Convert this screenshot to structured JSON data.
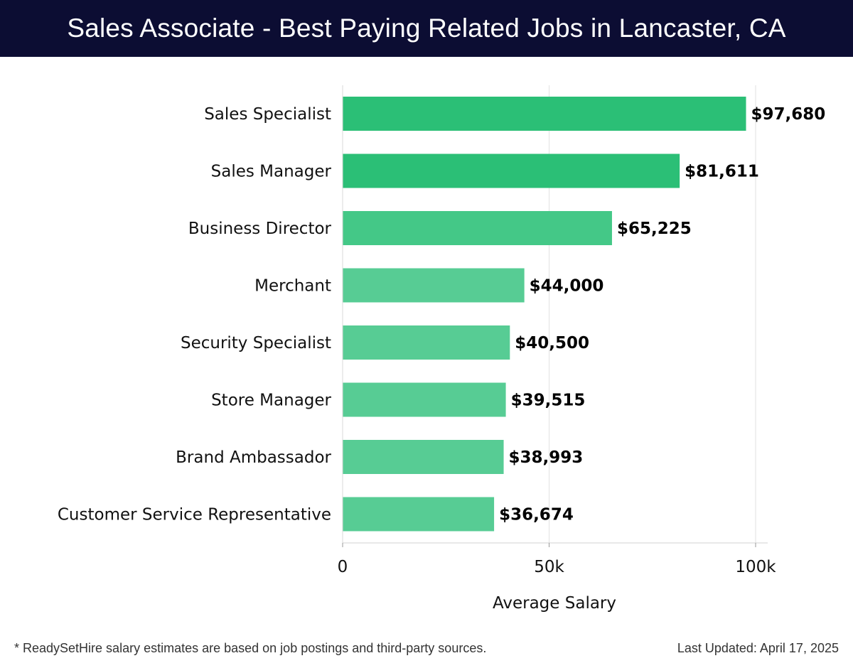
{
  "header": {
    "title": "Sales Associate - Best Paying Related Jobs in Lancaster, CA"
  },
  "chart_data": {
    "type": "bar",
    "orientation": "horizontal",
    "categories": [
      "Sales Specialist",
      "Sales Manager",
      "Business Director",
      "Merchant",
      "Security Specialist",
      "Store Manager",
      "Brand Ambassador",
      "Customer Service Representative"
    ],
    "values": [
      97680,
      81611,
      65225,
      44000,
      40500,
      39515,
      38993,
      36674
    ],
    "value_labels": [
      "$97,680",
      "$81,611",
      "$65,225",
      "$44,000",
      "$40,500",
      "$39,515",
      "$38,993",
      "$36,674"
    ],
    "xlabel": "Average Salary",
    "ylabel": "",
    "xlim": [
      0,
      100000
    ],
    "xticks": [
      0,
      50000,
      100000
    ],
    "xtick_labels": [
      "0",
      "50k",
      "100k"
    ],
    "grid": true,
    "colors": {
      "high": "#2bbf76",
      "mid": "#44c887",
      "low": "#57cc94"
    }
  },
  "footer": {
    "note": "* ReadySetHire salary estimates are based on job postings and third-party sources.",
    "updated": "Last Updated: April 17, 2025"
  }
}
